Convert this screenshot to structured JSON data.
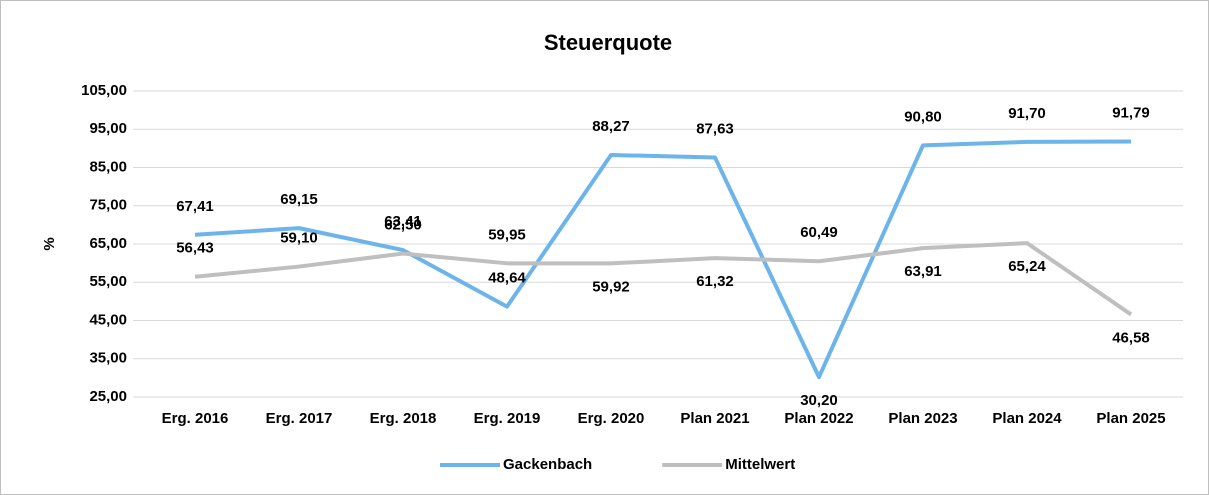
{
  "chart_data": {
    "type": "line",
    "title": "Steuerquote",
    "y_label": "%",
    "categories": [
      "Erg. 2016",
      "Erg. 2017",
      "Erg. 2018",
      "Erg. 2019",
      "Erg. 2020",
      "Plan 2021",
      "Plan 2022",
      "Plan 2023",
      "Plan 2024",
      "Plan 2025"
    ],
    "series": [
      {
        "name": "Gackenbach",
        "color": "#6cb4ea",
        "values": [
          67.41,
          69.15,
          63.41,
          48.64,
          88.27,
          87.63,
          30.2,
          90.8,
          91.7,
          91.79
        ],
        "value_labels": [
          "67,41",
          "69,15",
          "63,41",
          "48,64",
          "88,27",
          "87,63",
          "30,20",
          "90,80",
          "91,70",
          "91,79"
        ]
      },
      {
        "name": "Mittelwert",
        "color": "#bfbfbf",
        "values": [
          56.43,
          59.1,
          62.5,
          59.95,
          59.92,
          61.32,
          60.49,
          63.91,
          65.24,
          46.58
        ],
        "value_labels": [
          "56,43",
          "59,10",
          "62,50",
          "59,95",
          "59,92",
          "61,32",
          "60,49",
          "63,91",
          "65,24",
          "46,58"
        ]
      }
    ],
    "ylim": [
      25,
      105
    ],
    "yticks": [
      {
        "value": 25,
        "label": "25,00"
      },
      {
        "value": 35,
        "label": "35,00"
      },
      {
        "value": 45,
        "label": "45,00"
      },
      {
        "value": 55,
        "label": "55,00"
      },
      {
        "value": 65,
        "label": "65,00"
      },
      {
        "value": 75,
        "label": "75,00"
      },
      {
        "value": 85,
        "label": "85,00"
      },
      {
        "value": 95,
        "label": "95,00"
      },
      {
        "value": 105,
        "label": "105,00"
      }
    ],
    "grid": true,
    "legend": "bottom"
  }
}
